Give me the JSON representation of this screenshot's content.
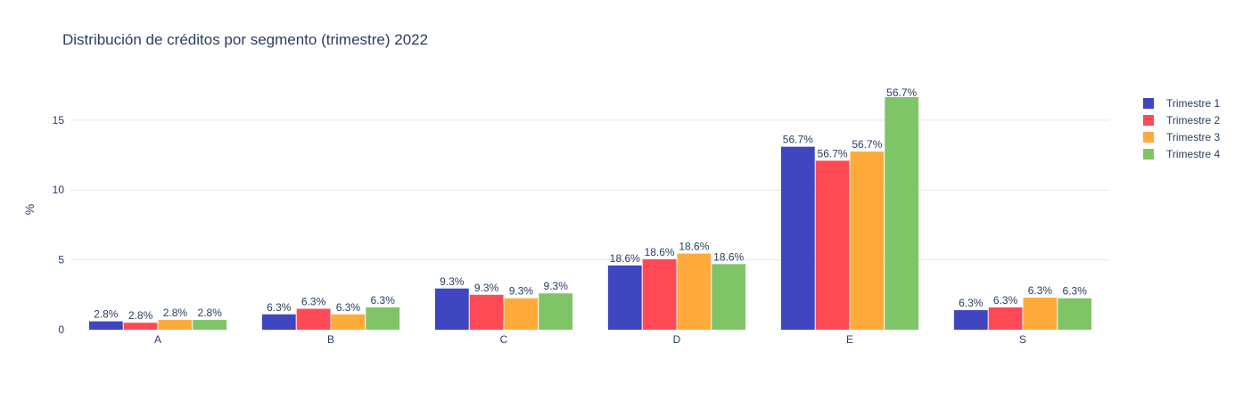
{
  "chart_data": {
    "type": "bar",
    "title": "Distribución de créditos por segmento (trimestre) 2022",
    "xlabel": "",
    "ylabel": "%",
    "ylim": [
      0,
      18.5
    ],
    "yticks": [
      0,
      5,
      10,
      15
    ],
    "ytick_labels": [
      "0",
      "5",
      "10",
      "15"
    ],
    "grid": true,
    "legend_position": "top-right",
    "categories": [
      "A",
      "B",
      "C",
      "D",
      "E",
      "S"
    ],
    "series": [
      {
        "name": "Trimestre 1",
        "color": "#4046bf",
        "values": [
          0.6,
          1.1,
          2.95,
          4.6,
          13.1,
          1.4
        ],
        "labels": [
          "2.8%",
          "6.3%",
          "9.3%",
          "18.6%",
          "56.7%",
          "6.3%"
        ]
      },
      {
        "name": "Trimestre 2",
        "color": "#ff4a55",
        "values": [
          0.5,
          1.5,
          2.5,
          5.05,
          12.1,
          1.6
        ],
        "labels": [
          "2.8%",
          "6.3%",
          "9.3%",
          "18.6%",
          "56.7%",
          "6.3%"
        ]
      },
      {
        "name": "Trimestre 3",
        "color": "#ffab3b",
        "values": [
          0.7,
          1.1,
          2.25,
          5.45,
          12.75,
          2.3
        ],
        "labels": [
          "2.8%",
          "6.3%",
          "9.3%",
          "18.6%",
          "56.7%",
          "6.3%"
        ]
      },
      {
        "name": "Trimestre 4",
        "color": "#7fc567",
        "values": [
          0.7,
          1.6,
          2.6,
          4.7,
          16.65,
          2.25
        ],
        "labels": [
          "2.8%",
          "6.3%",
          "9.3%",
          "18.6%",
          "56.7%",
          "6.3%"
        ]
      }
    ]
  }
}
